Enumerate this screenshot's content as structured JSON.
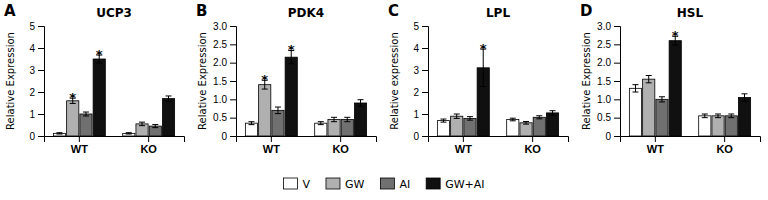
{
  "chart_data": [
    {
      "type": "bar",
      "annotation": "A",
      "title": "UCP3",
      "ylabel": "Relative Expression",
      "categories": [
        "WT",
        "KO"
      ],
      "series": [
        {
          "name": "V",
          "color": "#ffffff",
          "values": [
            0.12,
            0.12
          ],
          "errors": [
            0.03,
            0.03
          ],
          "annotations": [
            null,
            null
          ]
        },
        {
          "name": "GW",
          "color": "#b0b0b0",
          "values": [
            1.6,
            0.55
          ],
          "errors": [
            0.12,
            0.08
          ],
          "annotations": [
            "*",
            null
          ]
        },
        {
          "name": "AI",
          "color": "#707070",
          "values": [
            1.0,
            0.45
          ],
          "errors": [
            0.09,
            0.07
          ],
          "annotations": [
            null,
            null
          ]
        },
        {
          "name": "GW+AI",
          "color": "#101010",
          "values": [
            3.5,
            1.7
          ],
          "errors": [
            0.18,
            0.12
          ],
          "annotations": [
            "*",
            null
          ]
        }
      ],
      "ylim": [
        0,
        5
      ],
      "yticks": [
        0,
        1,
        2,
        3,
        4,
        5
      ],
      "legend": "bottom"
    },
    {
      "type": "bar",
      "annotation": "B",
      "title": "PDK4",
      "ylabel": "Relative Expression",
      "categories": [
        "WT",
        "KO"
      ],
      "series": [
        {
          "name": "V",
          "color": "#ffffff",
          "values": [
            0.35,
            0.35
          ],
          "errors": [
            0.04,
            0.04
          ],
          "annotations": [
            null,
            null
          ]
        },
        {
          "name": "GW",
          "color": "#b0b0b0",
          "values": [
            1.4,
            0.45
          ],
          "errors": [
            0.12,
            0.06
          ],
          "annotations": [
            "*",
            null
          ]
        },
        {
          "name": "AI",
          "color": "#707070",
          "values": [
            0.7,
            0.45
          ],
          "errors": [
            0.09,
            0.06
          ],
          "annotations": [
            null,
            null
          ]
        },
        {
          "name": "GW+AI",
          "color": "#101010",
          "values": [
            2.15,
            0.9
          ],
          "errors": [
            0.18,
            0.09
          ],
          "annotations": [
            "*",
            null
          ]
        }
      ],
      "ylim": [
        0,
        3
      ],
      "yticks": [
        0,
        0.5,
        {
          "value": 1.0,
          "label": "1.0"
        },
        1.5,
        {
          "value": 2.0,
          "label": "2.0"
        },
        2.5,
        {
          "value": 3.0,
          "label": "3.0"
        }
      ]
    },
    {
      "type": "bar",
      "annotation": "C",
      "title": "LPL",
      "ylabel": "Relative expression",
      "categories": [
        "WT",
        "KO"
      ],
      "series": [
        {
          "name": "V",
          "color": "#ffffff",
          "values": [
            0.7,
            0.75
          ],
          "errors": [
            0.07,
            0.06
          ],
          "annotations": [
            null,
            null
          ]
        },
        {
          "name": "GW",
          "color": "#b0b0b0",
          "values": [
            0.9,
            0.6
          ],
          "errors": [
            0.1,
            0.06
          ],
          "annotations": [
            null,
            null
          ]
        },
        {
          "name": "AI",
          "color": "#707070",
          "values": [
            0.8,
            0.85
          ],
          "errors": [
            0.08,
            0.07
          ],
          "annotations": [
            null,
            null
          ]
        },
        {
          "name": "GW+AI",
          "color": "#101010",
          "values": [
            3.1,
            1.05
          ],
          "errors": [
            0.85,
            0.1
          ],
          "annotations": [
            "*",
            null
          ]
        }
      ],
      "ylim": [
        0,
        5
      ],
      "yticks": [
        0,
        1,
        2,
        3,
        4,
        5
      ]
    },
    {
      "type": "bar",
      "annotation": "D",
      "title": "HSL",
      "ylabel": "Relative Expression",
      "categories": [
        "WT",
        "KO"
      ],
      "series": [
        {
          "name": "V",
          "color": "#ffffff",
          "values": [
            1.3,
            0.55
          ],
          "errors": [
            0.1,
            0.05
          ],
          "annotations": [
            null,
            null
          ]
        },
        {
          "name": "GW",
          "color": "#b0b0b0",
          "values": [
            1.55,
            0.55
          ],
          "errors": [
            0.1,
            0.05
          ],
          "annotations": [
            null,
            null
          ]
        },
        {
          "name": "AI",
          "color": "#707070",
          "values": [
            1.0,
            0.55
          ],
          "errors": [
            0.07,
            0.05
          ],
          "annotations": [
            null,
            null
          ]
        },
        {
          "name": "GW+AI",
          "color": "#101010",
          "values": [
            2.6,
            1.05
          ],
          "errors": [
            0.12,
            0.1
          ],
          "annotations": [
            "*",
            null
          ]
        }
      ],
      "ylim": [
        0,
        3
      ],
      "yticks": [
        0,
        0.5,
        {
          "value": 1.0,
          "label": "1.0"
        },
        1.5,
        {
          "value": 2.0,
          "label": "2.0"
        },
        2.5,
        {
          "value": 3.0,
          "label": "3.0"
        }
      ]
    }
  ]
}
